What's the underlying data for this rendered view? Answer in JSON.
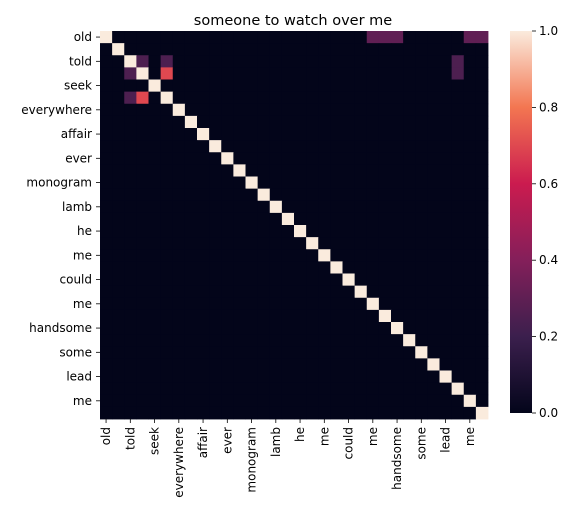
{
  "chart_data": {
    "type": "heatmap",
    "title": "someone to watch over me",
    "xlabel": "",
    "ylabel": "",
    "row_labels": [
      "old",
      "told",
      "seek",
      "everywhere",
      "affair",
      "ever",
      "monogram",
      "lamb",
      "he",
      "me",
      "could",
      "me",
      "handsome",
      "some",
      "lead",
      "me"
    ],
    "x_tick_labels": [
      "old",
      "told",
      "seek",
      "everywhere",
      "affair",
      "ever",
      "monogram",
      "lamb",
      "he",
      "me",
      "could",
      "me",
      "handsome",
      "some",
      "lead",
      "me"
    ],
    "y_tick_labels": [
      "old",
      "told",
      "seek",
      "everywhere",
      "affair",
      "ever",
      "monogram",
      "lamb",
      "he",
      "me",
      "could",
      "me",
      "handsome",
      "some",
      "lead",
      "me"
    ],
    "value_range": [
      0,
      1
    ],
    "colorbar_ticks": [
      0.0,
      0.2,
      0.4,
      0.6,
      0.8,
      1.0
    ],
    "colorbar_tick_labels": [
      "0.0",
      "0.2",
      "0.4",
      "0.6",
      "0.8",
      "1.0"
    ],
    "colormap": "rocket",
    "note_grid": "32 x 32 cells; every other row/column is tick-labelled",
    "values": [
      [
        1,
        0,
        0,
        0,
        0,
        0,
        0,
        0,
        0,
        0,
        0,
        0,
        0,
        0,
        0,
        0,
        0,
        0,
        0,
        0,
        0,
        0,
        0.3,
        0.3,
        0.3,
        0,
        0,
        0,
        0,
        0,
        0.3,
        0.3
      ],
      [
        0,
        1,
        0,
        0,
        0,
        0,
        0,
        0,
        0,
        0,
        0,
        0,
        0,
        0,
        0,
        0,
        0,
        0,
        0,
        0,
        0,
        0,
        0,
        0,
        0,
        0,
        0,
        0,
        0,
        0,
        0,
        0
      ],
      [
        0,
        0,
        1,
        0.25,
        0,
        0.25,
        0,
        0,
        0,
        0,
        0,
        0,
        0,
        0,
        0,
        0,
        0,
        0,
        0,
        0,
        0,
        0,
        0,
        0,
        0,
        0,
        0,
        0,
        0,
        0.25,
        0,
        0
      ],
      [
        0,
        0,
        0.25,
        1,
        0,
        0.7,
        0,
        0,
        0,
        0,
        0,
        0,
        0,
        0,
        0,
        0,
        0,
        0,
        0,
        0,
        0,
        0,
        0,
        0,
        0,
        0,
        0,
        0,
        0,
        0.25,
        0,
        0
      ],
      [
        0,
        0,
        0,
        0,
        1,
        0,
        0,
        0,
        0,
        0,
        0,
        0,
        0,
        0,
        0,
        0,
        0,
        0,
        0,
        0,
        0,
        0,
        0,
        0,
        0,
        0,
        0,
        0,
        0,
        0,
        0,
        0
      ],
      [
        0,
        0,
        0.25,
        0.7,
        0,
        1,
        0,
        0,
        0,
        0,
        0,
        0,
        0,
        0,
        0,
        0,
        0,
        0,
        0,
        0,
        0,
        0,
        0,
        0,
        0,
        0,
        0,
        0,
        0,
        0,
        0,
        0
      ],
      [
        0,
        0,
        0,
        0,
        0,
        0,
        1,
        0,
        0,
        0,
        0,
        0,
        0,
        0,
        0,
        0,
        0,
        0,
        0,
        0,
        0,
        0,
        0,
        0,
        0,
        0,
        0,
        0,
        0,
        0,
        0,
        0
      ],
      [
        0,
        0,
        0,
        0,
        0,
        0,
        0,
        1,
        0,
        0,
        0,
        0,
        0,
        0,
        0,
        0,
        0,
        0,
        0,
        0,
        0,
        0,
        0,
        0,
        0,
        0,
        0,
        0,
        0,
        0,
        0,
        0
      ],
      [
        0,
        0,
        0,
        0,
        0,
        0,
        0,
        0,
        1,
        0,
        0,
        0,
        0,
        0,
        0,
        0,
        0,
        0,
        0,
        0,
        0,
        0,
        0,
        0,
        0,
        0,
        0,
        0,
        0,
        0,
        0,
        0
      ],
      [
        0,
        0,
        0,
        0,
        0,
        0,
        0,
        0,
        0,
        1,
        0,
        0,
        0,
        0,
        0,
        0,
        0,
        0,
        0,
        0,
        0,
        0,
        0,
        0,
        0,
        0,
        0,
        0,
        0,
        0,
        0,
        0
      ],
      [
        0,
        0,
        0,
        0,
        0,
        0,
        0,
        0,
        0,
        0,
        1,
        0,
        0,
        0,
        0,
        0,
        0,
        0,
        0,
        0,
        0,
        0,
        0,
        0,
        0,
        0,
        0,
        0,
        0,
        0,
        0,
        0
      ],
      [
        0,
        0,
        0,
        0,
        0,
        0,
        0,
        0,
        0,
        0,
        0,
        1,
        0,
        0,
        0,
        0,
        0,
        0,
        0,
        0,
        0,
        0,
        0,
        0,
        0,
        0,
        0,
        0,
        0,
        0,
        0,
        0
      ],
      [
        0,
        0,
        0,
        0,
        0,
        0,
        0,
        0,
        0,
        0,
        0,
        0,
        1,
        0,
        0,
        0,
        0,
        0,
        0,
        0,
        0,
        0,
        0,
        0,
        0,
        0,
        0,
        0,
        0,
        0,
        0,
        0
      ],
      [
        0,
        0,
        0,
        0,
        0,
        0,
        0,
        0,
        0,
        0,
        0,
        0,
        0,
        1,
        0,
        0,
        0,
        0,
        0,
        0,
        0,
        0,
        0,
        0,
        0,
        0,
        0,
        0,
        0,
        0,
        0,
        0
      ],
      [
        0,
        0,
        0,
        0,
        0,
        0,
        0,
        0,
        0,
        0,
        0,
        0,
        0,
        0,
        1,
        0,
        0,
        0,
        0,
        0,
        0,
        0,
        0,
        0,
        0,
        0,
        0,
        0,
        0,
        0,
        0,
        0
      ],
      [
        0,
        0,
        0,
        0,
        0,
        0,
        0,
        0,
        0,
        0,
        0,
        0,
        0,
        0,
        0,
        1,
        0,
        0,
        0,
        0,
        0,
        0,
        0,
        0,
        0,
        0,
        0,
        0,
        0,
        0,
        0,
        0
      ],
      [
        0,
        0,
        0,
        0,
        0,
        0,
        0,
        0,
        0,
        0,
        0,
        0,
        0,
        0,
        0,
        0,
        1,
        0,
        0,
        0,
        0,
        0,
        0,
        0,
        0,
        0,
        0,
        0,
        0,
        0,
        0,
        0
      ],
      [
        0,
        0,
        0,
        0,
        0,
        0,
        0,
        0,
        0,
        0,
        0,
        0,
        0,
        0,
        0,
        0,
        0,
        1,
        0,
        0,
        0,
        0,
        0,
        0,
        0,
        0,
        0,
        0,
        0,
        0,
        0,
        0
      ],
      [
        0,
        0,
        0,
        0,
        0,
        0,
        0,
        0,
        0,
        0,
        0,
        0,
        0,
        0,
        0,
        0,
        0,
        0,
        1,
        0,
        0,
        0,
        0,
        0,
        0,
        0,
        0,
        0,
        0,
        0,
        0,
        0
      ],
      [
        0,
        0,
        0,
        0,
        0,
        0,
        0,
        0,
        0,
        0,
        0,
        0,
        0,
        0,
        0,
        0,
        0,
        0,
        0,
        1,
        0,
        0,
        0,
        0,
        0,
        0,
        0,
        0,
        0,
        0,
        0,
        0
      ],
      [
        0,
        0,
        0,
        0,
        0,
        0,
        0,
        0,
        0,
        0,
        0,
        0,
        0,
        0,
        0,
        0,
        0,
        0,
        0,
        0,
        1,
        0,
        0,
        0,
        0,
        0,
        0,
        0,
        0,
        0,
        0,
        0
      ],
      [
        0,
        0,
        0,
        0,
        0,
        0,
        0,
        0,
        0,
        0,
        0,
        0,
        0,
        0,
        0,
        0,
        0,
        0,
        0,
        0,
        0,
        1,
        0,
        0,
        0,
        0,
        0,
        0,
        0,
        0,
        0,
        0
      ],
      [
        0,
        0,
        0,
        0,
        0,
        0,
        0,
        0,
        0,
        0,
        0,
        0,
        0,
        0,
        0,
        0,
        0,
        0,
        0,
        0,
        0,
        0,
        1,
        0,
        0,
        0,
        0,
        0,
        0,
        0,
        0,
        0
      ],
      [
        0,
        0,
        0,
        0,
        0,
        0,
        0,
        0,
        0,
        0,
        0,
        0,
        0,
        0,
        0,
        0,
        0,
        0,
        0,
        0,
        0,
        0,
        0,
        1,
        0,
        0,
        0,
        0,
        0,
        0,
        0,
        0
      ],
      [
        0,
        0,
        0,
        0,
        0,
        0,
        0,
        0,
        0,
        0,
        0,
        0,
        0,
        0,
        0,
        0,
        0,
        0,
        0,
        0,
        0,
        0,
        0,
        0,
        1,
        0,
        0,
        0,
        0,
        0,
        0,
        0
      ],
      [
        0,
        0,
        0,
        0,
        0,
        0,
        0,
        0,
        0,
        0,
        0,
        0,
        0,
        0,
        0,
        0,
        0,
        0,
        0,
        0,
        0,
        0,
        0,
        0,
        0,
        1,
        0,
        0,
        0,
        0,
        0,
        0
      ],
      [
        0,
        0,
        0,
        0,
        0,
        0,
        0,
        0,
        0,
        0,
        0,
        0,
        0,
        0,
        0,
        0,
        0,
        0,
        0,
        0,
        0,
        0,
        0,
        0,
        0,
        0,
        1,
        0,
        0,
        0,
        0,
        0
      ],
      [
        0,
        0,
        0,
        0,
        0,
        0,
        0,
        0,
        0,
        0,
        0,
        0,
        0,
        0,
        0,
        0,
        0,
        0,
        0,
        0,
        0,
        0,
        0,
        0,
        0,
        0,
        0,
        1,
        0,
        0,
        0,
        0
      ],
      [
        0,
        0,
        0,
        0,
        0,
        0,
        0,
        0,
        0,
        0,
        0,
        0,
        0,
        0,
        0,
        0,
        0,
        0,
        0,
        0,
        0,
        0,
        0,
        0,
        0,
        0,
        0,
        0,
        1,
        0,
        0,
        0
      ],
      [
        0,
        0,
        0,
        0,
        0,
        0,
        0,
        0,
        0,
        0,
        0,
        0,
        0,
        0,
        0,
        0,
        0,
        0,
        0,
        0,
        0,
        0,
        0,
        0,
        0,
        0,
        0,
        0,
        0,
        1,
        0,
        0
      ],
      [
        0,
        0,
        0,
        0,
        0,
        0,
        0,
        0,
        0,
        0,
        0,
        0,
        0,
        0,
        0,
        0,
        0,
        0,
        0,
        0,
        0,
        0,
        0,
        0,
        0,
        0,
        0,
        0,
        0,
        0,
        1,
        0
      ],
      [
        0,
        0,
        0,
        0,
        0,
        0,
        0,
        0,
        0,
        0,
        0,
        0,
        0,
        0,
        0,
        0,
        0,
        0,
        0,
        0,
        0,
        0,
        0,
        0,
        0,
        0,
        0,
        0,
        0,
        0,
        0,
        1
      ]
    ]
  }
}
